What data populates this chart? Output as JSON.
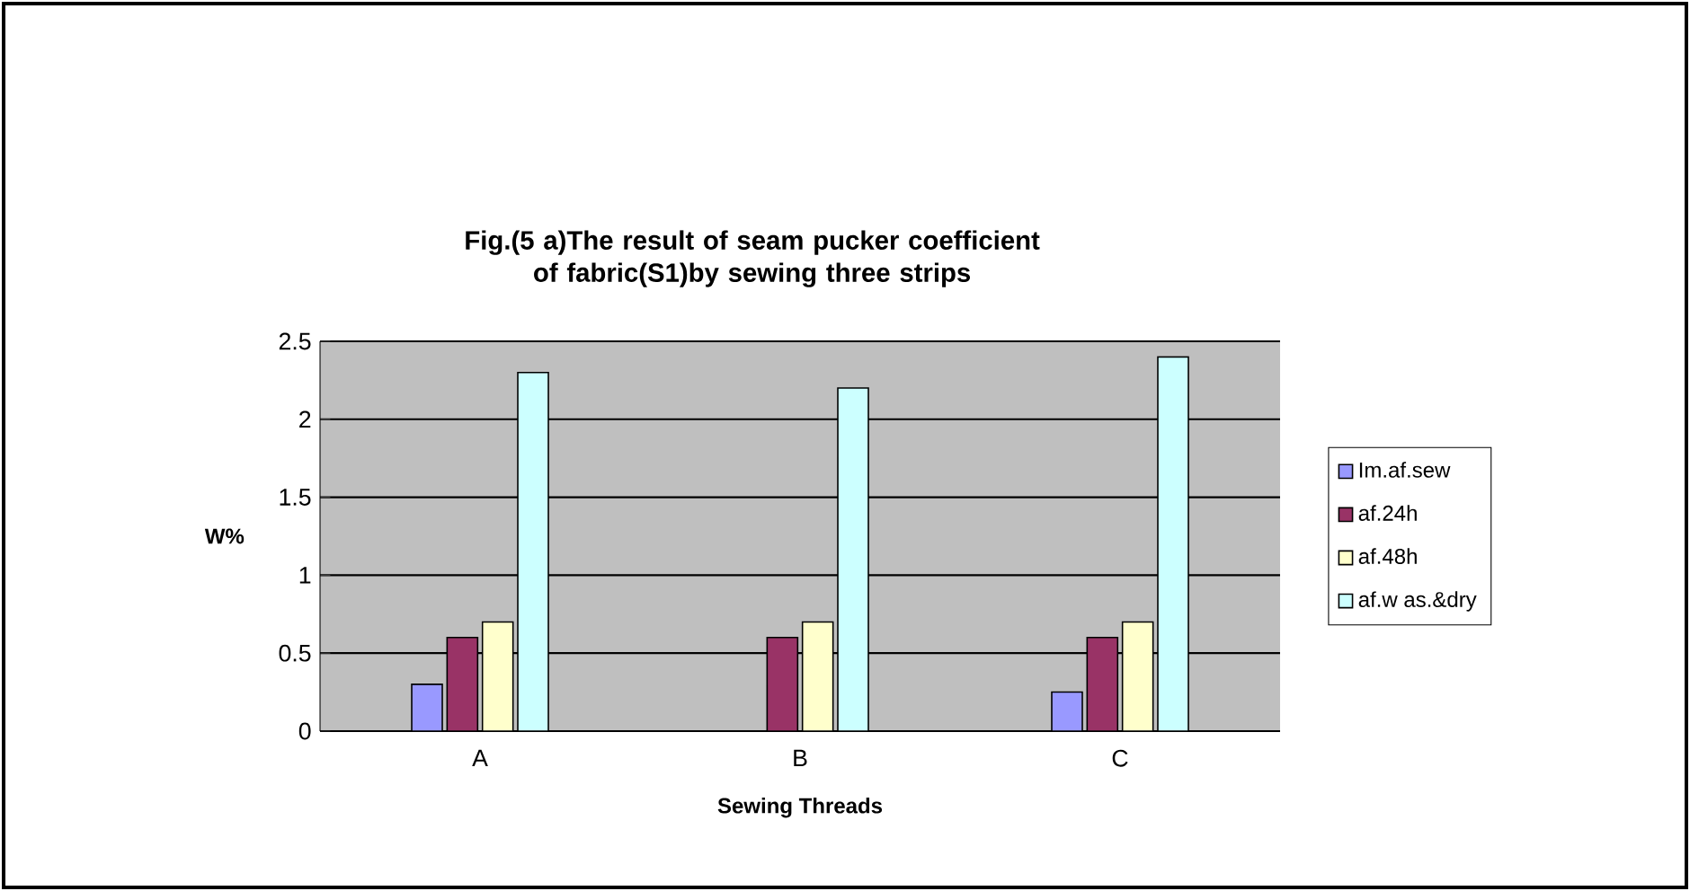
{
  "chart_data": {
    "type": "bar",
    "title": "Fig.(5 a)The result of seam pucker coefficient of fabric(S1)by sewing three strips",
    "xlabel": "Sewing Threads",
    "ylabel": "W%",
    "categories": [
      "A",
      "B",
      "C"
    ],
    "series": [
      {
        "name": "Im.af.sew",
        "color": "#9999ff",
        "values": [
          0.3,
          0,
          0.25
        ]
      },
      {
        "name": "af.24h",
        "color": "#993366",
        "values": [
          0.6,
          0.6,
          0.6
        ]
      },
      {
        "name": "af.48h",
        "color": "#ffffcc",
        "values": [
          0.7,
          0.7,
          0.7
        ]
      },
      {
        "name": "af.w as.&dry",
        "color": "#ccffff",
        "values": [
          2.3,
          2.2,
          2.4
        ]
      }
    ],
    "ylim": [
      0,
      2.5
    ],
    "yticks": [
      0,
      0.5,
      1,
      1.5,
      2,
      2.5
    ],
    "grid": "y",
    "legend": "right"
  }
}
